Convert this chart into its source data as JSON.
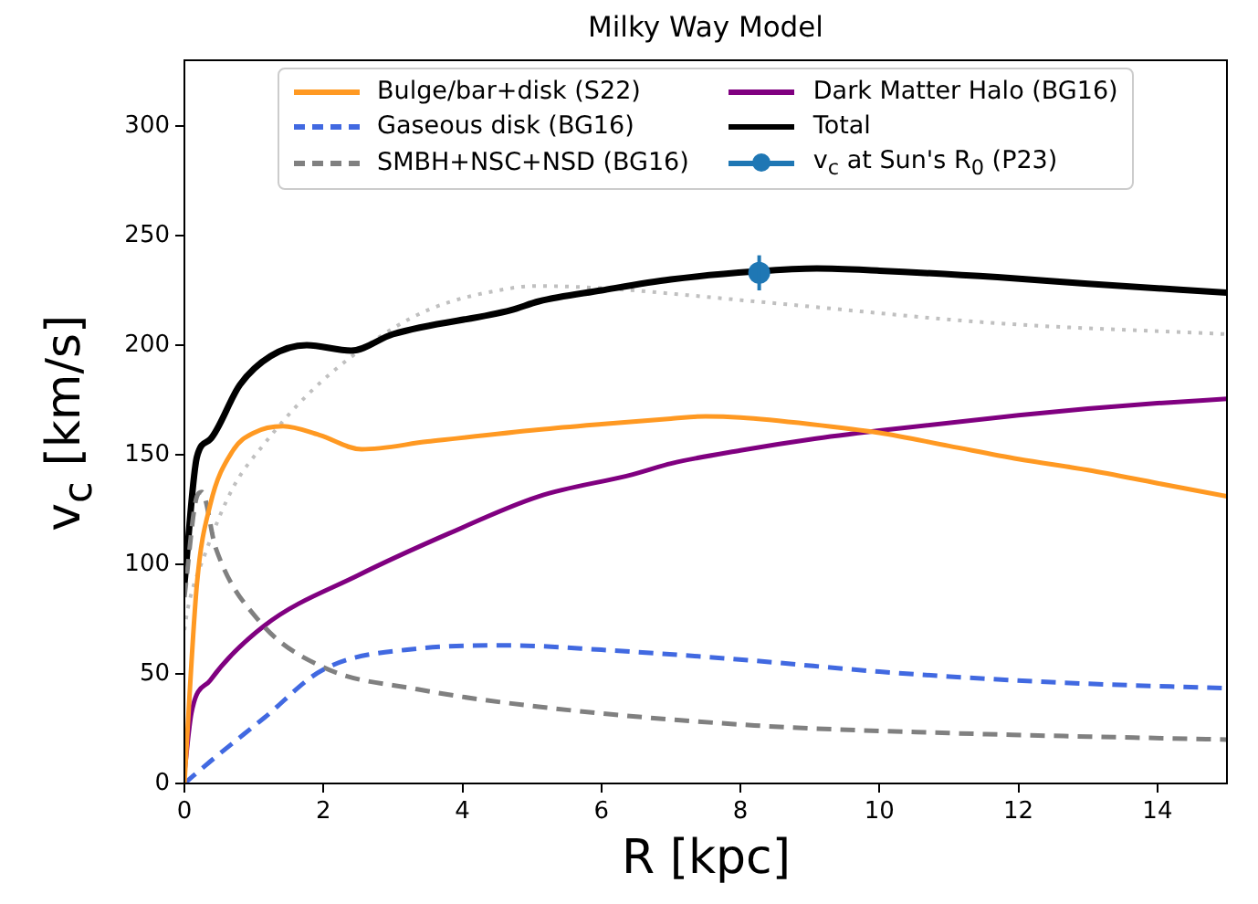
{
  "chart_data": {
    "type": "line",
    "title": "Milky Way Model",
    "xlabel": "R [kpc]",
    "ylabel": "v$_{c}$ [km/s]",
    "xlim": [
      0,
      15
    ],
    "xticks": [
      0,
      2,
      4,
      6,
      8,
      10,
      12,
      14
    ],
    "ylim": [
      0,
      330
    ],
    "yticks": [
      0,
      50,
      100,
      150,
      200,
      250,
      300
    ],
    "grid": false,
    "legend": "top",
    "marker": "none",
    "line_style": "solid",
    "series": [
      {
        "name": "Bulge/bar+disk (S22)",
        "color": "#ff9922",
        "x": [
          0,
          0.18,
          0.37,
          0.7,
          1.0,
          1.42,
          1.94,
          2.55,
          3.5,
          5.1,
          6,
          7,
          7.5,
          8,
          9,
          10,
          11,
          12,
          13,
          14,
          15
        ],
        "values": [
          0,
          91,
          127,
          152,
          160,
          163,
          159,
          152.5,
          156,
          161.5,
          164,
          166.5,
          167.5,
          167,
          164,
          160,
          154,
          148,
          143,
          137,
          131
        ]
      },
      {
        "name": "Gaseous disk (BG16)",
        "color": "#4169e1",
        "line_style": "dashed",
        "x": [
          0,
          0.37,
          1.15,
          2.0,
          3.35,
          4.65,
          6,
          8.2,
          10,
          11.7,
          13,
          15
        ],
        "values": [
          0,
          10,
          30,
          52,
          61.5,
          63,
          61,
          56,
          51,
          47.5,
          45.5,
          43.5
        ]
      },
      {
        "name": "SMBH+NSC+NSD (BG16)",
        "color": "#808080",
        "line_style": "dashed",
        "x": [
          0,
          0.18,
          0.25,
          0.45,
          1.08,
          2.0,
          3.35,
          5.1,
          8.2,
          11,
          15
        ],
        "values": [
          85,
          131,
          133,
          107.5,
          74,
          53,
          43,
          35,
          26.5,
          23,
          20
        ]
      },
      {
        "name": "Dark Matter Halo (BG16)",
        "color": "#800080",
        "x": [
          0,
          0.1,
          0.37,
          1.15,
          2.5,
          3.8,
          5.1,
          6.45,
          7,
          8,
          9,
          10,
          12,
          13,
          14,
          15
        ],
        "values": [
          5,
          32,
          47,
          72,
          95,
          114,
          131,
          141,
          146,
          152,
          157,
          161,
          168,
          171,
          173.5,
          175.5
        ]
      },
      {
        "name": "Total",
        "color": "#000000",
        "x": [
          0,
          0.18,
          0.37,
          0.8,
          1.24,
          1.76,
          2.4,
          3.0,
          4.7,
          5.1,
          6,
          7,
          8.2,
          9.1,
          10,
          11.7,
          13,
          15
        ],
        "values": [
          91,
          149,
          157,
          182,
          195,
          200,
          197.5,
          205,
          216,
          220,
          225,
          230,
          233.6,
          235,
          234,
          231,
          228,
          224
        ]
      },
      {
        "name": "v$_{c}$ at Sun's R$_{0}$ (P23)",
        "type": "scatter",
        "marker": "circle",
        "color": "#1f77b4",
        "x": [
          8.27
        ],
        "values": [
          233
        ],
        "errors": [
          8
        ]
      },
      {
        "color": "#c0c0c0",
        "line_style": "dotted",
        "x": [
          0,
          0.05,
          0.3,
          0.7,
          1.15,
          1.76,
          2.5,
          3.5,
          4.7,
          5.1,
          6,
          8.2,
          11.7,
          15
        ],
        "values": [
          70,
          80,
          105,
          135,
          155,
          177,
          197,
          216,
          226,
          227,
          226,
          220,
          210,
          205
        ]
      }
    ]
  }
}
